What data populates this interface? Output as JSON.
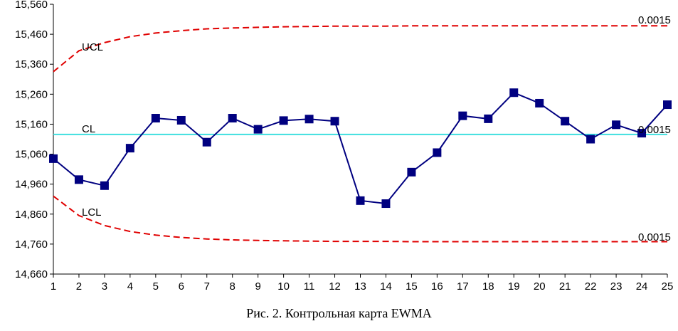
{
  "chart_data": {
    "type": "line",
    "title": "Рис. 2. Контрольная карта EWMA",
    "xlabel": "",
    "ylabel": "",
    "x": [
      1,
      2,
      3,
      4,
      5,
      6,
      7,
      8,
      9,
      10,
      11,
      12,
      13,
      14,
      15,
      16,
      17,
      18,
      19,
      20,
      21,
      22,
      23,
      24,
      25
    ],
    "ylim": [
      14.66,
      15.56
    ],
    "y_ticks": [
      "14,660",
      "14,760",
      "14,860",
      "14,960",
      "15,060",
      "15,160",
      "15,260",
      "15,360",
      "15,460",
      "15,560"
    ],
    "x_ticks": [
      "1",
      "2",
      "3",
      "4",
      "5",
      "6",
      "7",
      "8",
      "9",
      "10",
      "11",
      "12",
      "13",
      "14",
      "15",
      "16",
      "17",
      "18",
      "19",
      "20",
      "21",
      "22",
      "23",
      "24",
      "25"
    ],
    "series": [
      {
        "name": "EWMA",
        "color": "#000080",
        "values": [
          15.045,
          14.975,
          14.955,
          15.08,
          15.18,
          15.173,
          15.1,
          15.18,
          15.143,
          15.172,
          15.177,
          15.17,
          14.905,
          14.895,
          15.0,
          15.065,
          15.188,
          15.178,
          15.265,
          15.23,
          15.17,
          15.11,
          15.158,
          15.13,
          15.225
        ]
      },
      {
        "name": "UCL",
        "color": "#e00000",
        "values": [
          15.335,
          15.405,
          15.432,
          15.452,
          15.464,
          15.472,
          15.478,
          15.481,
          15.483,
          15.485,
          15.486,
          15.487,
          15.487,
          15.487,
          15.488,
          15.488,
          15.488,
          15.488,
          15.488,
          15.488,
          15.488,
          15.488,
          15.488,
          15.488,
          15.488
        ]
      },
      {
        "name": "LCL",
        "color": "#e00000",
        "values": [
          14.92,
          14.855,
          14.822,
          14.802,
          14.79,
          14.782,
          14.777,
          14.774,
          14.772,
          14.771,
          14.77,
          14.769,
          14.769,
          14.769,
          14.768,
          14.768,
          14.768,
          14.768,
          14.768,
          14.768,
          14.768,
          14.768,
          14.768,
          14.768,
          14.768
        ]
      },
      {
        "name": "CL",
        "color": "#33dddd",
        "values": [
          15.126,
          15.126,
          15.126,
          15.126,
          15.126,
          15.126,
          15.126,
          15.126,
          15.126,
          15.126,
          15.126,
          15.126,
          15.126,
          15.126,
          15.126,
          15.126,
          15.126,
          15.126,
          15.126,
          15.126,
          15.126,
          15.126,
          15.126,
          15.126,
          15.126
        ]
      }
    ],
    "annotations": {
      "ucl_label": "UCL",
      "cl_label": "CL",
      "lcl_label": "LCL",
      "ucl_alpha": "0.0015",
      "cl_alpha": "0.0015",
      "lcl_alpha": "0.0015"
    }
  }
}
